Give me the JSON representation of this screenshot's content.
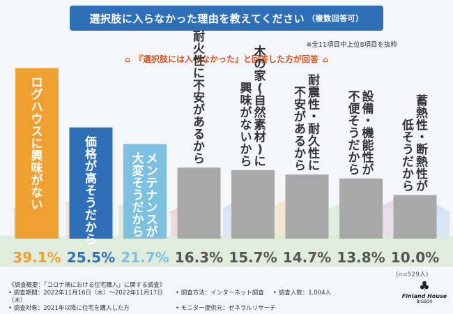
{
  "header": {
    "title": "選択肢に入らなかった理由を教えてください",
    "title_suffix": "（複数回答可）",
    "note": "※全11項目中上位8項目を抜粋",
    "subtitle": "『選択肢には入らなかった』と回答した方が回答"
  },
  "chart_data": {
    "type": "bar",
    "categories": [
      "ログハウスに興味がない",
      "価格が高そうだから",
      "メンテナンスが大変そうだから",
      "耐火性に不安があるから",
      "木の家(自然素材)に興味がないから",
      "耐震性・耐久性に不安があるから",
      "設備・機能性が不便そうだから",
      "蓄熱性・断熱性が低そうだから"
    ],
    "category_lines": [
      [
        "ログハウスに興味がない"
      ],
      [
        "価格が高そうだから"
      ],
      [
        "メンテナンスが",
        "大変そうだから"
      ],
      [
        "耐火性に不安があるから"
      ],
      [
        "木の家(自然素材)に",
        "興味がないから"
      ],
      [
        "耐震性・耐久性に",
        "不安があるから"
      ],
      [
        "設備・機能性が",
        "不便そうだから"
      ],
      [
        "蓄熱性・断熱性が",
        "低そうだから"
      ]
    ],
    "values": [
      39.1,
      25.5,
      21.7,
      16.3,
      15.7,
      14.7,
      13.8,
      10.0
    ],
    "value_labels": [
      "39.1%",
      "25.5%",
      "21.7%",
      "16.3%",
      "15.7%",
      "14.7%",
      "13.8%",
      "10.0%"
    ],
    "colors": [
      "#f0a030",
      "#2f6fb8",
      "#7ec0e0",
      "#a8a8a8",
      "#a8a8a8",
      "#a8a8a8",
      "#a8a8a8",
      "#a8a8a8"
    ],
    "label_colors": [
      "#f0a030",
      "#2f6fb8",
      "#7ec0e0",
      "#555555",
      "#555555",
      "#555555",
      "#555555",
      "#555555"
    ],
    "ylim": [
      0,
      40
    ],
    "n_label": "(n=529人)"
  },
  "survey": {
    "overview": "《調査概要：「コロナ禍における住宅購入」に関する調査》",
    "period": "• 調査期間：2022年11月16日（水）～2022年11月17日（木）",
    "method": "• 調査方法：インターネット調査",
    "count": "• 調査人数：1,004人",
    "target": "• 調査対象：2021年以降に住宅を購入した方",
    "provider": "• モニター提供元：ゼネラルリサーチ"
  },
  "logo": {
    "name": "Finland House",
    "sub": "BIGBOX",
    "icon": "tree-icon"
  }
}
